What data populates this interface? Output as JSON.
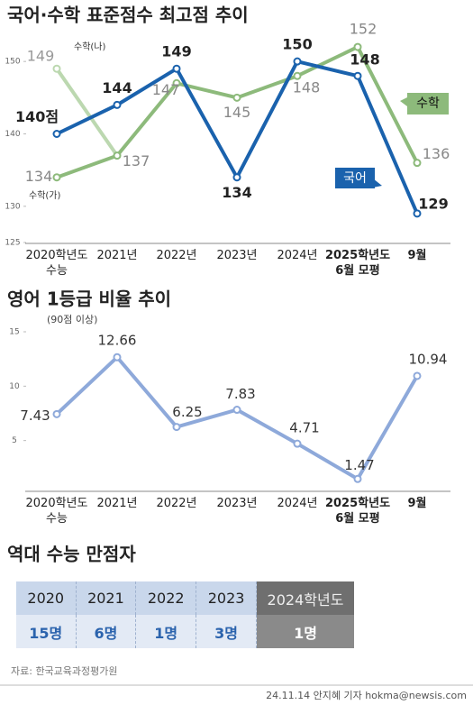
{
  "chart_data": [
    {
      "type": "line",
      "title": "국어·수학 표준점수 최고점 추이",
      "categories": [
        "2020학년도\n수능",
        "2021년",
        "2022년",
        "2023년",
        "2024년",
        "2025학년도\n6월 모평",
        "9월"
      ],
      "series": [
        {
          "name": "국어",
          "color": "#1a62ad",
          "values": [
            140,
            144,
            149,
            134,
            150,
            148,
            129
          ],
          "value_labels": [
            "140점",
            "144",
            "149",
            "134",
            "150",
            "148",
            "129"
          ]
        },
        {
          "name": "수학",
          "color": "#8dba7b",
          "values": [
            134,
            137,
            147,
            145,
            148,
            152,
            136
          ]
        },
        {
          "name": "수학(나)",
          "color": "#bcd8b0",
          "values": [
            149,
            137,
            null,
            null,
            null,
            null,
            null
          ]
        }
      ],
      "annotations": [
        "수학(가)"
      ],
      "ylim": [
        125,
        155
      ],
      "yticks": [
        125,
        130,
        140,
        150
      ]
    },
    {
      "type": "line",
      "title": "영어 1등급 비율 추이",
      "subtitle": "(90점 이상)",
      "categories": [
        "2020학년도\n수능",
        "2021년",
        "2022년",
        "2023년",
        "2024년",
        "2025학년도\n6월 모평",
        "9월"
      ],
      "series": [
        {
          "color": "#8ea9da",
          "values": [
            7.43,
            12.66,
            6.25,
            7.83,
            4.71,
            1.47,
            10.94
          ]
        }
      ],
      "ylim": [
        0,
        15
      ],
      "yticks": [
        5,
        10,
        15
      ]
    }
  ],
  "table": {
    "title": "역대 수능 만점자",
    "header": [
      "2020",
      "2021",
      "2022",
      "2023",
      "2024학년도"
    ],
    "row": [
      "15명",
      "6명",
      "1명",
      "3명",
      "1명"
    ]
  },
  "source": "자료: 한국교육과정평가원",
  "credit": "24.11.14 안지혜 기자 hokma@newsis.com"
}
